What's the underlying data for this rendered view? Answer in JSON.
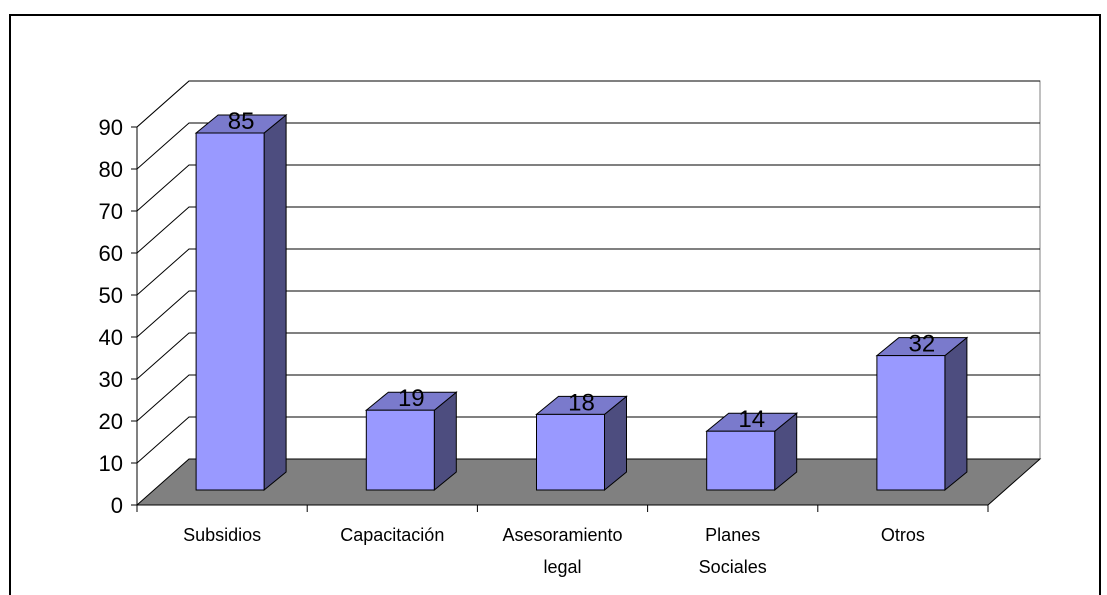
{
  "chart_data": {
    "type": "bar",
    "categories": [
      [
        "Subsidios"
      ],
      [
        "Capacitación"
      ],
      [
        "Asesoramiento",
        "legal"
      ],
      [
        "Planes",
        "Sociales"
      ],
      [
        "Otros"
      ]
    ],
    "values": [
      85,
      19,
      18,
      14,
      32
    ],
    "title": "",
    "xlabel": "",
    "ylabel": "",
    "ylim": [
      0,
      90
    ],
    "yticks": [
      0,
      10,
      20,
      30,
      40,
      50,
      60,
      70,
      80,
      90
    ],
    "grid": true,
    "legend": "none",
    "style": "3d-column"
  },
  "colors": {
    "bar_front": "#9999ff",
    "bar_side": "#4d4d7f",
    "bar_top": "#7a7acc",
    "floor": "#808080",
    "grid": "#000000",
    "wall": "#ffffff"
  }
}
